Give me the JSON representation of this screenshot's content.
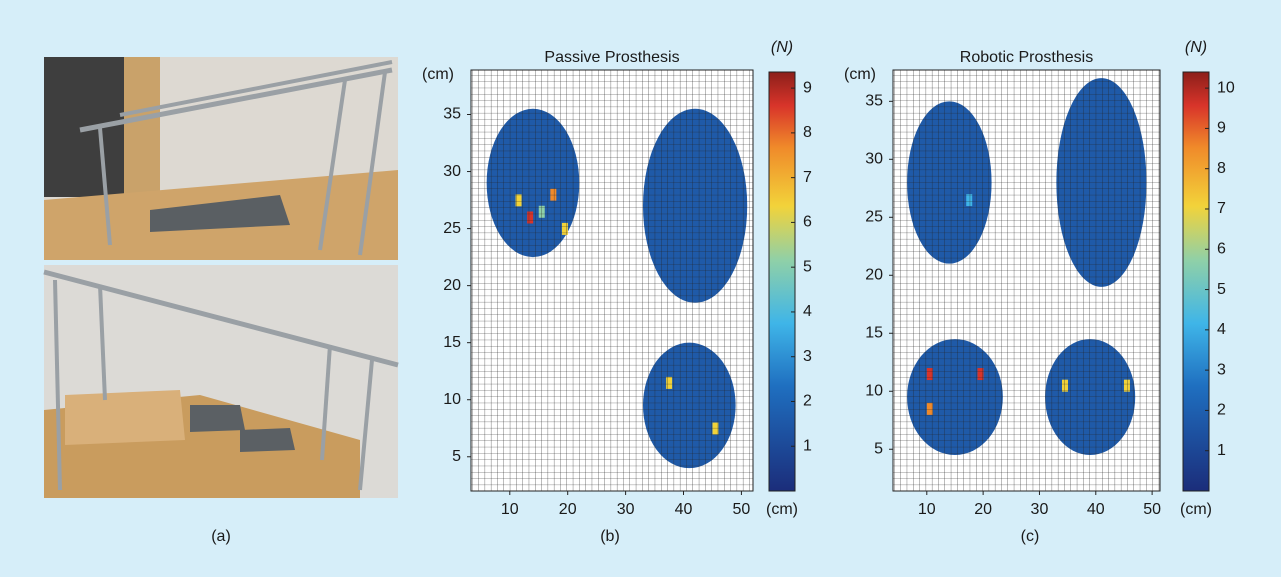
{
  "panel_a": {
    "caption": "(a)"
  },
  "chart_data": [
    {
      "type": "heatmap",
      "title": "Passive Prosthesis",
      "x_unit": "(cm)",
      "y_unit": "(cm)",
      "colorbar_label": "(N)",
      "caption": "(b)",
      "xlim": [
        3.3,
        52
      ],
      "ylim": [
        2.0,
        38.9
      ],
      "xticks": [
        10,
        20,
        30,
        40,
        50
      ],
      "yticks": [
        5,
        10,
        15,
        20,
        25,
        30,
        35
      ],
      "clim": [
        0,
        9.36
      ],
      "cticks": [
        1,
        2,
        3,
        4,
        5,
        6,
        7,
        8,
        9
      ]
    },
    {
      "type": "heatmap",
      "title": "Robotic Prosthesis",
      "x_unit": "(cm)",
      "y_unit": "(cm)",
      "colorbar_label": "(N)",
      "caption": "(c)",
      "xlim": [
        4.0,
        51.4
      ],
      "ylim": [
        1.4,
        37.7
      ],
      "xticks": [
        10,
        20,
        30,
        40,
        50
      ],
      "yticks": [
        5,
        10,
        15,
        20,
        25,
        30,
        35
      ],
      "clim": [
        0,
        10.4
      ],
      "cticks": [
        1,
        2,
        3,
        4,
        5,
        6,
        7,
        8,
        9,
        10
      ]
    }
  ]
}
